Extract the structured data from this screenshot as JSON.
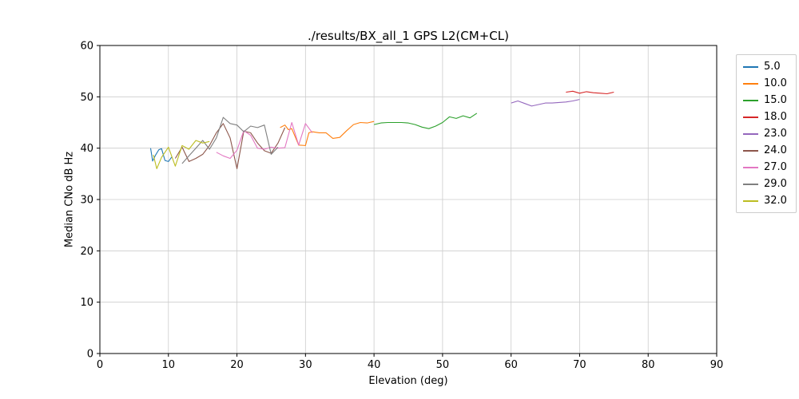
{
  "chart_data": {
    "type": "line",
    "title": "./results/BX_all_1 GPS L2(CM+CL)",
    "xlabel": "Elevation (deg)",
    "ylabel": "Median CNo dB Hz",
    "xlim": [
      0,
      90
    ],
    "ylim": [
      0,
      60
    ],
    "xticks": [
      0,
      10,
      20,
      30,
      40,
      50,
      60,
      70,
      80,
      90
    ],
    "yticks": [
      0,
      10,
      20,
      30,
      40,
      50,
      60
    ],
    "grid": true,
    "grid_color": "#cccccc",
    "axis_color": "#000000",
    "legend_position": "upper right outside",
    "series": [
      {
        "name": "5.0",
        "color": "#1f77b4",
        "x": [
          7.4,
          7.7,
          8.1,
          8.6,
          9.0,
          9.5,
          10.0,
          10.5
        ],
        "y": [
          40.0,
          37.5,
          38.6,
          39.7,
          39.9,
          37.6,
          37.4,
          38.3
        ]
      },
      {
        "name": "10.0",
        "color": "#ff7f0e",
        "x": [
          26.3,
          27,
          27.5,
          28,
          29,
          30,
          30.5,
          31,
          32,
          33,
          34,
          35,
          36,
          37,
          38,
          39,
          40
        ],
        "y": [
          44.0,
          44.5,
          43.6,
          43.8,
          40.6,
          40.5,
          43.0,
          43.2,
          43.0,
          43.0,
          41.9,
          42.1,
          43.4,
          44.6,
          45.0,
          44.9,
          45.2
        ]
      },
      {
        "name": "15.0",
        "color": "#2ca02c",
        "x": [
          40,
          41,
          42,
          43,
          44,
          45,
          46,
          47,
          48,
          49,
          50,
          51,
          52,
          53,
          54,
          55
        ],
        "y": [
          44.6,
          44.9,
          45.0,
          45.0,
          45.0,
          44.9,
          44.6,
          44.1,
          43.8,
          44.3,
          45.0,
          46.1,
          45.8,
          46.3,
          45.9,
          46.8
        ]
      },
      {
        "name": "18.0",
        "color": "#d62728",
        "x": [
          68,
          69,
          70,
          71,
          72,
          73,
          74,
          75
        ],
        "y": [
          50.9,
          51.1,
          50.7,
          51.0,
          50.8,
          50.7,
          50.6,
          50.9
        ]
      },
      {
        "name": "23.0",
        "color": "#9467bd",
        "x": [
          60,
          61,
          62,
          63,
          64,
          65,
          66,
          67,
          68,
          69,
          70
        ],
        "y": [
          48.8,
          49.2,
          48.7,
          48.2,
          48.5,
          48.8,
          48.8,
          48.9,
          49.0,
          49.2,
          49.5
        ]
      },
      {
        "name": "24.0",
        "color": "#8c564b",
        "x": [
          11,
          12,
          13,
          14,
          15,
          16,
          17,
          18,
          19,
          20,
          21,
          22,
          23,
          24,
          25,
          26,
          27
        ],
        "y": [
          38.0,
          40.2,
          37.4,
          38.0,
          38.8,
          40.5,
          43.0,
          44.8,
          42.0,
          36.0,
          43.3,
          43.0,
          41.0,
          39.5,
          39.0,
          41.0,
          44.0
        ]
      },
      {
        "name": "27.0",
        "color": "#e377c2",
        "x": [
          17,
          18,
          19,
          20,
          21,
          22,
          23,
          24,
          25,
          26,
          27,
          28,
          29,
          30,
          31
        ],
        "y": [
          39.2,
          38.5,
          38.0,
          39.6,
          43.4,
          42.5,
          40.0,
          39.8,
          40.2,
          40.0,
          40.1,
          45.0,
          40.6,
          44.8,
          43.0
        ]
      },
      {
        "name": "29.0",
        "color": "#7f7f7f",
        "x": [
          12,
          13,
          14,
          15,
          16,
          17,
          18,
          19,
          20,
          21,
          22,
          23,
          24,
          25,
          26
        ],
        "y": [
          37.0,
          38.5,
          40.0,
          41.5,
          39.8,
          42.0,
          46.0,
          44.8,
          44.5,
          43.2,
          44.3,
          44.0,
          44.5,
          38.8,
          40.2
        ]
      },
      {
        "name": "32.0",
        "color": "#bcbd22",
        "x": [
          7.8,
          8.3,
          9.0,
          10.0,
          11.0,
          12.0,
          13.0,
          14.0,
          15.0,
          16.0
        ],
        "y": [
          38.7,
          36.0,
          38.2,
          40.2,
          36.5,
          40.5,
          39.8,
          41.5,
          41.0,
          41.3
        ]
      }
    ]
  }
}
